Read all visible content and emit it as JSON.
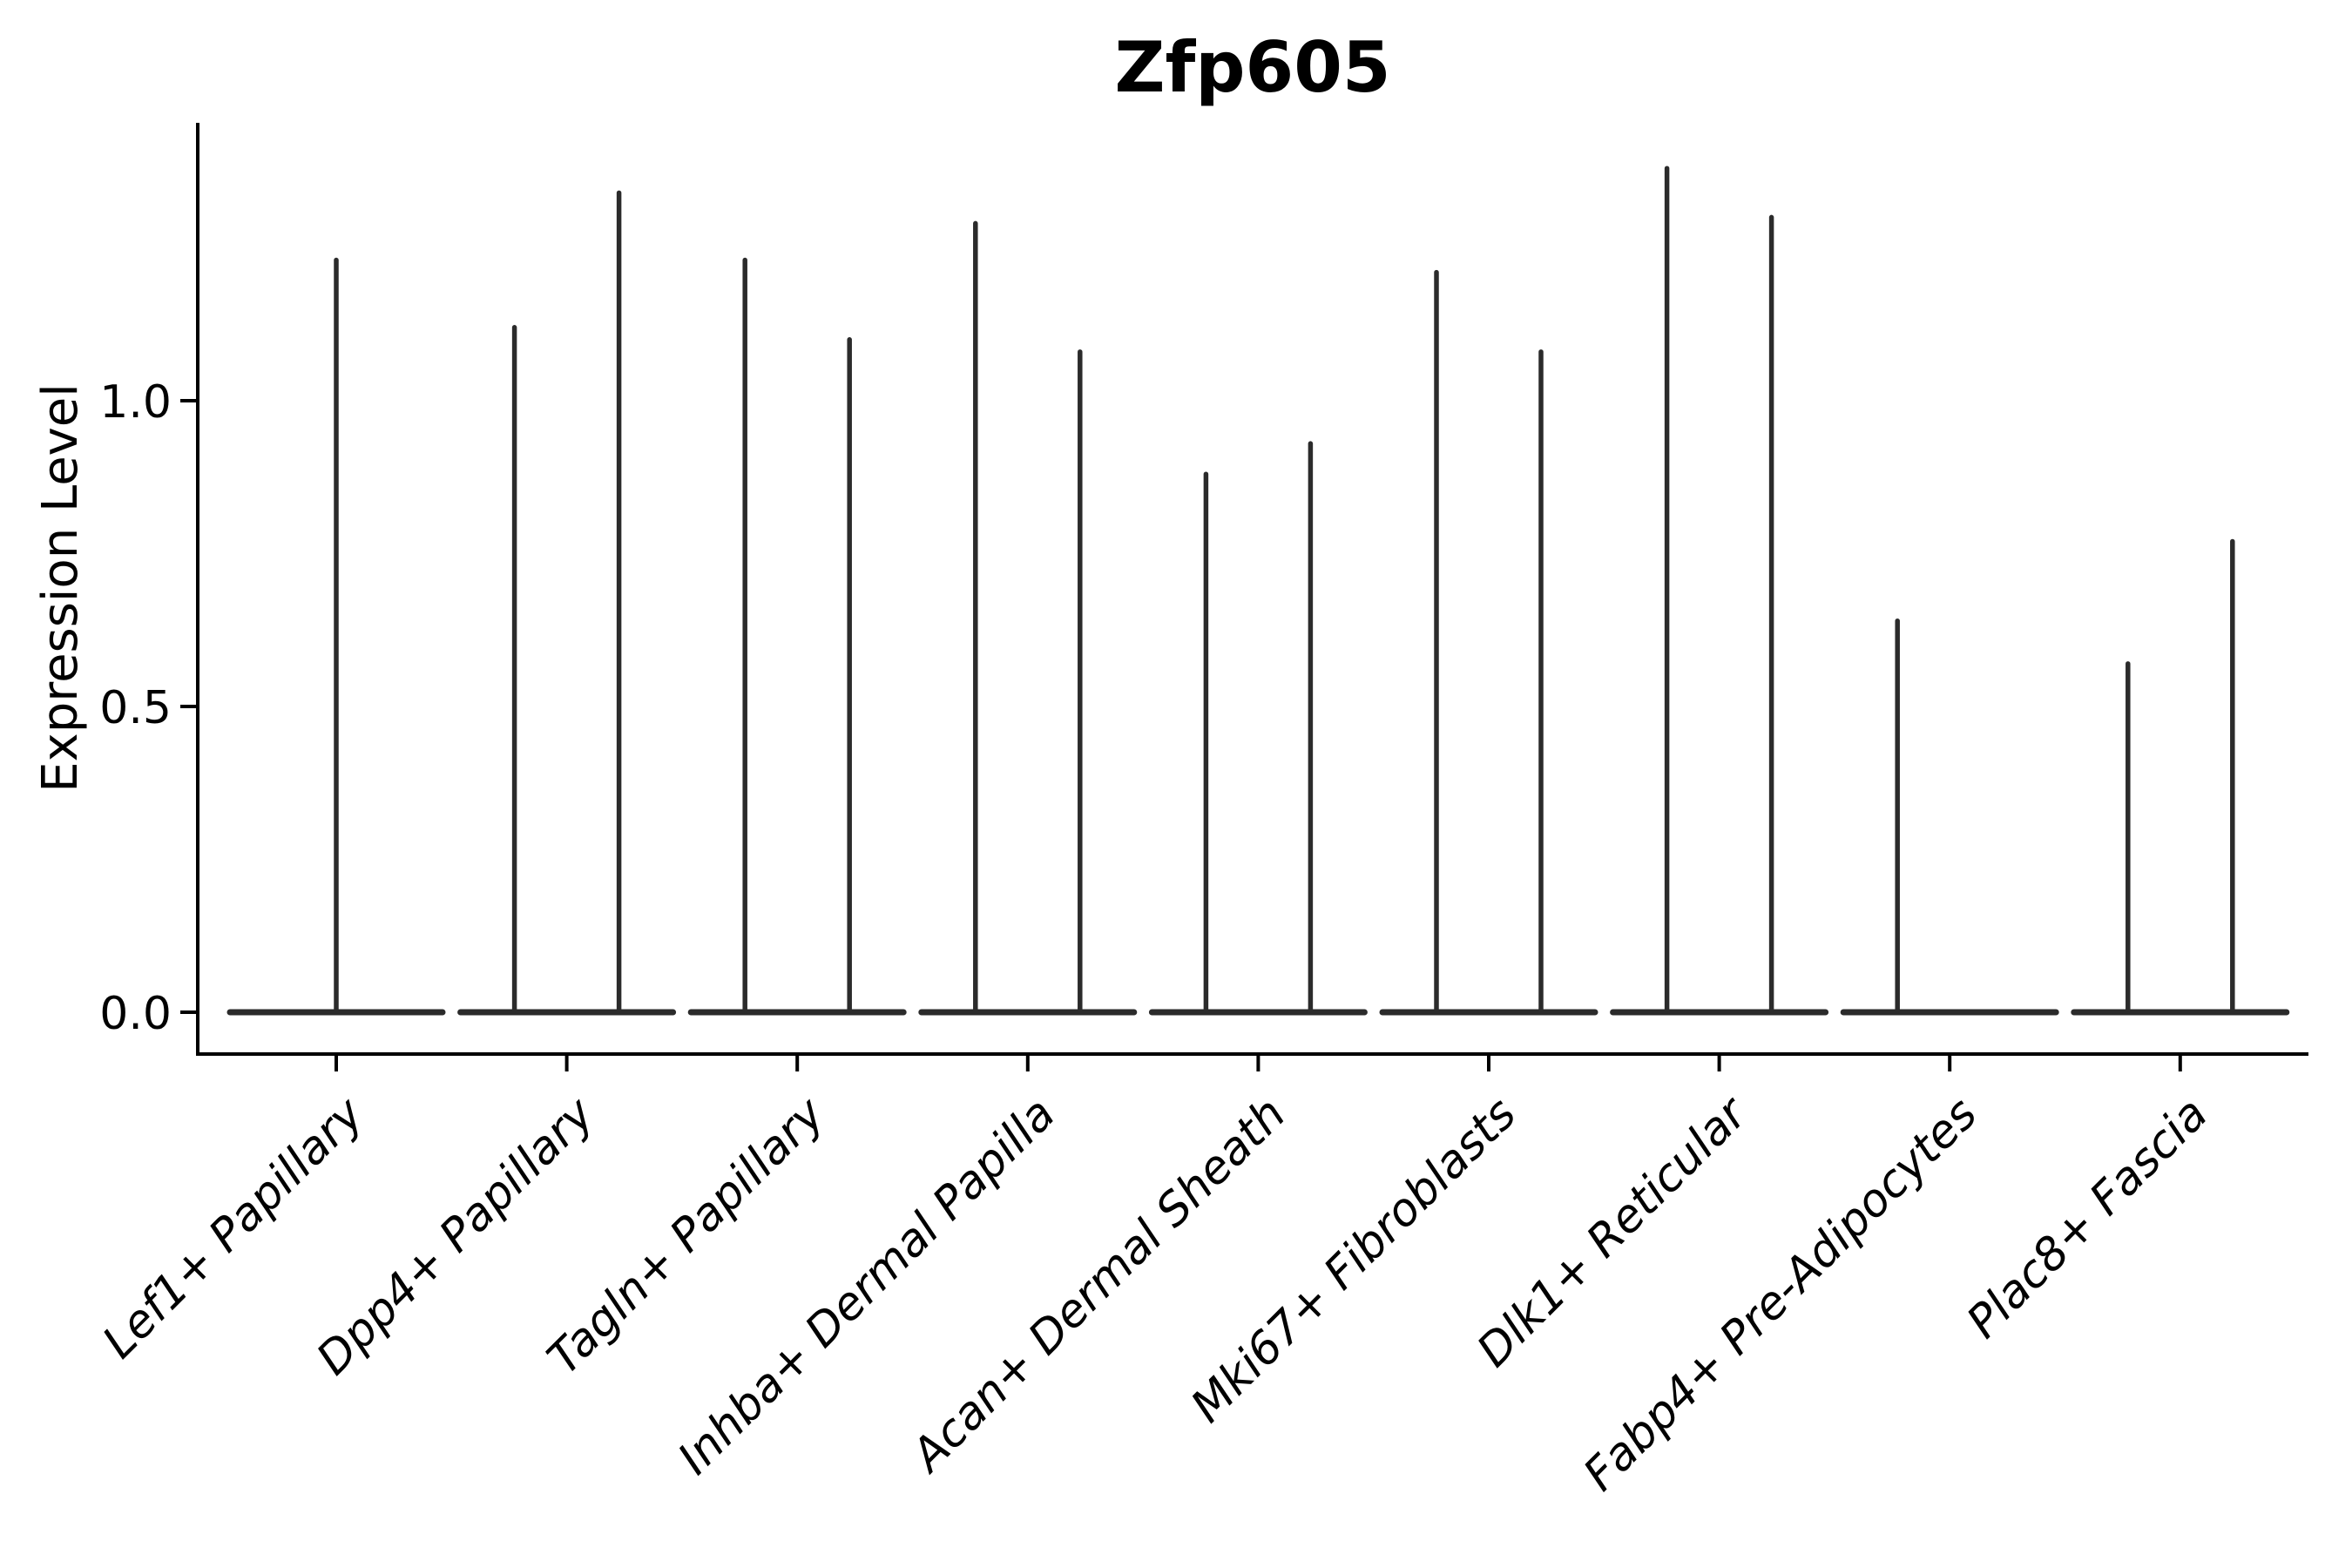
{
  "page": {
    "background": "#ffffff"
  },
  "chart_data": {
    "type": "violin",
    "title": "Zfp605",
    "title_bold": true,
    "ylabel": "Expression Level",
    "xlabel": "",
    "legend": "none",
    "grid": false,
    "ylim": [
      -0.07,
      1.45
    ],
    "ytick_values": [
      0.0,
      0.5,
      1.0
    ],
    "ytick_labels": [
      "0.0",
      "0.5",
      "1.0"
    ],
    "xtick_rotation_deg": 45,
    "xtick_style": "italic",
    "categories": [
      "Lef1+ Papillary",
      "Dpp4+ Papillary",
      "Tagln+ Papillary",
      "Inhba+ Dermal Papilla",
      "Acan+ Dermal Sheath",
      "Mki67+ Fibroblasts",
      "Dlk1+ Reticular",
      "Fabp4+ Pre-Adipocytes",
      "Plac8+ Fascia"
    ],
    "colors": {
      "violin": "#2b2b2b",
      "axis": "#000000",
      "text": "#000000",
      "background": "#ffffff"
    },
    "series": [
      {
        "category": "Lef1+ Papillary",
        "violins": [
          {
            "position": "center",
            "base_value": 0.0,
            "peak_expression": 1.23
          }
        ]
      },
      {
        "category": "Dpp4+ Papillary",
        "violins": [
          {
            "position": "left",
            "base_value": 0.0,
            "peak_expression": 1.12
          },
          {
            "position": "right",
            "base_value": 0.0,
            "peak_expression": 1.34
          }
        ]
      },
      {
        "category": "Tagln+ Papillary",
        "violins": [
          {
            "position": "left",
            "base_value": 0.0,
            "peak_expression": 1.23
          },
          {
            "position": "right",
            "base_value": 0.0,
            "peak_expression": 1.1
          }
        ]
      },
      {
        "category": "Inhba+ Dermal Papilla",
        "violins": [
          {
            "position": "left",
            "base_value": 0.0,
            "peak_expression": 1.29
          },
          {
            "position": "right",
            "base_value": 0.0,
            "peak_expression": 1.08
          }
        ]
      },
      {
        "category": "Acan+ Dermal Sheath",
        "violins": [
          {
            "position": "left",
            "base_value": 0.0,
            "peak_expression": 0.88
          },
          {
            "position": "right",
            "base_value": 0.0,
            "peak_expression": 0.93
          }
        ]
      },
      {
        "category": "Mki67+ Fibroblasts",
        "violins": [
          {
            "position": "left",
            "base_value": 0.0,
            "peak_expression": 1.21
          },
          {
            "position": "right",
            "base_value": 0.0,
            "peak_expression": 1.08
          }
        ]
      },
      {
        "category": "Dlk1+ Reticular",
        "violins": [
          {
            "position": "left",
            "base_value": 0.0,
            "peak_expression": 1.38
          },
          {
            "position": "right",
            "base_value": 0.0,
            "peak_expression": 1.3
          }
        ]
      },
      {
        "category": "Fabp4+ Pre-Adipocytes",
        "violins": [
          {
            "position": "left",
            "base_value": 0.0,
            "peak_expression": 0.64
          }
        ]
      },
      {
        "category": "Plac8+ Fascia",
        "violins": [
          {
            "position": "left",
            "base_value": 0.0,
            "peak_expression": 0.57
          },
          {
            "position": "right",
            "base_value": 0.0,
            "peak_expression": 0.77
          }
        ]
      }
    ]
  }
}
